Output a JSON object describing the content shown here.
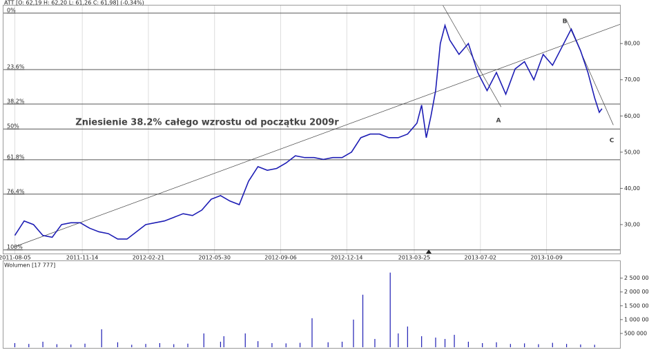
{
  "chart_data": [
    {
      "type": "line",
      "title": "ATT [O: 62,19 H: 62,20 L: 61,26 C: 61,98] (-0,34%)",
      "xlim": [
        "2011-07-19",
        "2014-01-27"
      ],
      "xticks": [
        "2011-08-05",
        "2011-11-14",
        "2012-02-21",
        "2012-05-30",
        "2012-09-06",
        "2012-12-14",
        "2013-03-25",
        "2013-07-02",
        "2013-10-09"
      ],
      "ylim": [
        22,
        90.5
      ],
      "yticks": [
        {
          "value": 30,
          "label": "30,00"
        },
        {
          "value": 40,
          "label": "40,00"
        },
        {
          "value": 50,
          "label": "50,00"
        },
        {
          "value": 60,
          "label": "60,00"
        },
        {
          "value": 70,
          "label": "70,00"
        },
        {
          "value": 80,
          "label": "80,00"
        }
      ],
      "grid": true,
      "series": [
        {
          "name": "ATT",
          "color": "#1c1cb4",
          "x": [
            "2011-08-05",
            "2011-08-19",
            "2011-09-02",
            "2011-09-16",
            "2011-09-30",
            "2011-10-14",
            "2011-10-28",
            "2011-11-11",
            "2011-11-25",
            "2011-12-09",
            "2011-12-23",
            "2012-01-06",
            "2012-01-20",
            "2012-02-03",
            "2012-02-17",
            "2012-03-02",
            "2012-03-16",
            "2012-03-30",
            "2012-04-13",
            "2012-04-27",
            "2012-05-11",
            "2012-05-25",
            "2012-06-08",
            "2012-06-22",
            "2012-07-06",
            "2012-07-20",
            "2012-08-03",
            "2012-08-17",
            "2012-08-31",
            "2012-09-14",
            "2012-09-28",
            "2012-10-12",
            "2012-10-26",
            "2012-11-09",
            "2012-11-23",
            "2012-12-07",
            "2012-12-21",
            "2013-01-04",
            "2013-01-18",
            "2013-02-01",
            "2013-02-15",
            "2013-03-01",
            "2013-03-15",
            "2013-03-29",
            "2013-04-05",
            "2013-04-12",
            "2013-04-19",
            "2013-04-26",
            "2013-05-03",
            "2013-05-10",
            "2013-05-17",
            "2013-05-31",
            "2013-06-14",
            "2013-06-28",
            "2013-07-12",
            "2013-07-26",
            "2013-08-09",
            "2013-08-23",
            "2013-09-06",
            "2013-09-20",
            "2013-10-04",
            "2013-10-18",
            "2013-11-01",
            "2013-11-15",
            "2013-11-29",
            "2013-12-10",
            "2013-12-20",
            "2013-12-27",
            "2013-12-31"
          ],
          "values": [
            27,
            31,
            30,
            27,
            26.5,
            30,
            30.5,
            30.5,
            29,
            28,
            27.5,
            26,
            26,
            28,
            30,
            30.5,
            31,
            32,
            33,
            32.5,
            34,
            37,
            38,
            36.5,
            35.5,
            42,
            46,
            45,
            45.5,
            47,
            49,
            48.5,
            48.5,
            48,
            48.5,
            48.5,
            50,
            54,
            55,
            55,
            54,
            54,
            55,
            58,
            63,
            54,
            60,
            67,
            80,
            85,
            81,
            77,
            80,
            72,
            67,
            72,
            66,
            73,
            75,
            70,
            77,
            74,
            79,
            84,
            78,
            72,
            65,
            61,
            62
          ]
        }
      ],
      "fib_levels": [
        {
          "value": 88.4,
          "label": "0%"
        },
        {
          "value": 72.8,
          "label": "23.6%"
        },
        {
          "value": 63.3,
          "label": "38.2%"
        },
        {
          "value": 56.4,
          "label": "50%"
        },
        {
          "value": 47.9,
          "label": "61.8%"
        },
        {
          "value": 38.4,
          "label": "76.4%"
        },
        {
          "value": 23.0,
          "label": "100%"
        }
      ],
      "trendlines": [
        {
          "x": [
            "2011-08-05",
            "2014-01-27"
          ],
          "values": [
            23.9,
            85.3
          ]
        },
        {
          "x": [
            "2013-05-07",
            "2013-08-02"
          ],
          "values": [
            90.5,
            62.5
          ]
        },
        {
          "x": [
            "2013-11-08",
            "2014-01-17"
          ],
          "values": [
            86.5,
            57.5
          ]
        }
      ],
      "annotations": [
        "Zniesienie 38.2% całego wzrostu od początku 2009r",
        "A",
        "B",
        "C"
      ]
    },
    {
      "type": "bar",
      "title": "Wolumen [17 777]",
      "xlim": [
        "2011-07-19",
        "2014-01-27"
      ],
      "ylim": [
        0,
        3140000
      ],
      "yticks": [
        {
          "value": 500000,
          "label": "500 000"
        },
        {
          "value": 1000000,
          "label": "1 000 000"
        },
        {
          "value": 1500000,
          "label": "1 500 000"
        },
        {
          "value": 2000000,
          "label": "2 000 000"
        },
        {
          "value": 2500000,
          "label": "2 500 000"
        }
      ],
      "series": [
        {
          "name": "Wolumen",
          "color": "#1c1cb4",
          "x": [
            "2011-08-05",
            "2011-08-26",
            "2011-09-16",
            "2011-10-07",
            "2011-10-28",
            "2011-11-18",
            "2011-12-13",
            "2012-01-06",
            "2012-01-27",
            "2012-02-17",
            "2012-03-09",
            "2012-03-30",
            "2012-04-20",
            "2012-05-14",
            "2012-06-08",
            "2012-06-13",
            "2012-07-15",
            "2012-08-03",
            "2012-08-24",
            "2012-09-14",
            "2012-10-05",
            "2012-10-23",
            "2012-11-16",
            "2012-12-07",
            "2012-12-24",
            "2013-01-07",
            "2013-01-25",
            "2013-02-17",
            "2013-03-01",
            "2013-03-15",
            "2013-04-05",
            "2013-04-26",
            "2013-05-10",
            "2013-05-24",
            "2013-06-14",
            "2013-07-05",
            "2013-07-26",
            "2013-08-16",
            "2013-09-06",
            "2013-09-27",
            "2013-10-18",
            "2013-11-08",
            "2013-11-29",
            "2013-12-20"
          ],
          "values": [
            150000,
            120000,
            200000,
            110000,
            100000,
            130000,
            650000,
            180000,
            90000,
            120000,
            150000,
            110000,
            130000,
            500000,
            200000,
            400000,
            500000,
            220000,
            150000,
            140000,
            160000,
            1050000,
            180000,
            200000,
            1000000,
            1900000,
            300000,
            2700000,
            500000,
            750000,
            400000,
            350000,
            300000,
            450000,
            200000,
            150000,
            180000,
            120000,
            140000,
            110000,
            160000,
            120000,
            100000,
            90000
          ]
        }
      ]
    }
  ]
}
